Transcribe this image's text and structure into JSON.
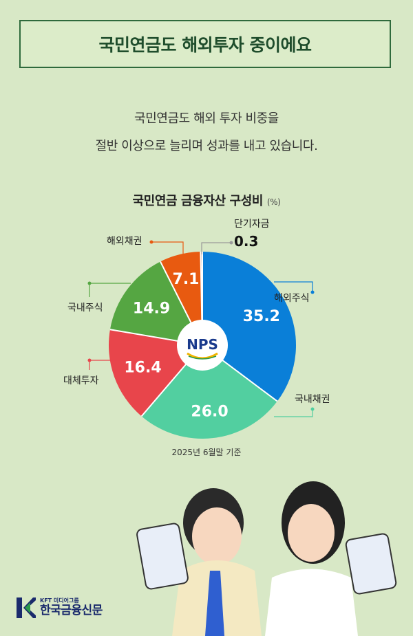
{
  "header": {
    "title": "국민연금도 해외투자 중이에요"
  },
  "intro": {
    "line1": "국민연금도 해외 투자 비중을",
    "line2": "절반 이상으로 늘리며 성과를 내고 있습니다."
  },
  "chart_title": "국민연금 금융자산 구성비",
  "chart_unit": "(%)",
  "center_logo": "NPS",
  "footnote": "2025년 6월말 기준",
  "brand": {
    "small": "KFT 미디어그룹",
    "main": "한국금융신문"
  },
  "colors": {
    "background": "#d8e8c6",
    "overseas_stock": "#0a7fd8",
    "domestic_bond": "#52cfa0",
    "alternative": "#e8454b",
    "domestic_stock": "#55a642",
    "overseas_bond": "#e85a10",
    "short_term": "#9a9a9a"
  },
  "chart_data": {
    "type": "pie",
    "title": "국민연금 금융자산 구성비",
    "unit": "%",
    "slices": [
      {
        "label": "해외주식",
        "value": 35.2,
        "color": "#0a7fd8",
        "show_value": "35.2"
      },
      {
        "label": "국내채권",
        "value": 26.0,
        "color": "#52cfa0",
        "show_value": "26.0"
      },
      {
        "label": "대체투자",
        "value": 16.4,
        "color": "#e8454b",
        "show_value": "16.4"
      },
      {
        "label": "국내주식",
        "value": 14.9,
        "color": "#55a642",
        "show_value": "14.9"
      },
      {
        "label": "해외채권",
        "value": 7.1,
        "color": "#e85a10",
        "show_value": "7.1"
      },
      {
        "label": "단기자금",
        "value": 0.3,
        "color": "#9a9a9a",
        "show_value": "0.3"
      }
    ]
  }
}
